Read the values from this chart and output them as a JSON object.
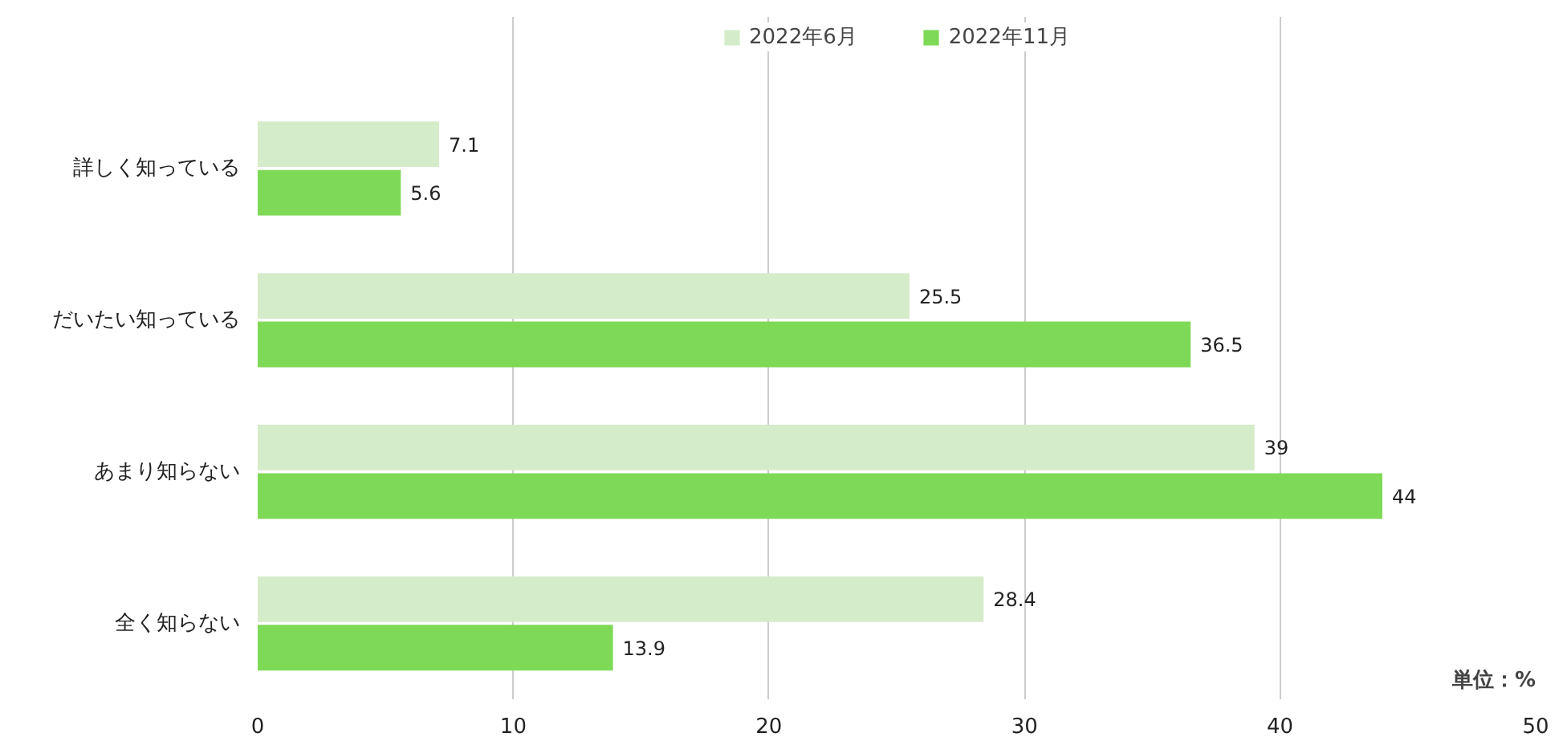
{
  "chart_data": {
    "type": "bar",
    "orientation": "horizontal",
    "categories": [
      "詳しく知っている",
      "だいたい知っている",
      "あまり知らない",
      "全く知らない"
    ],
    "series": [
      {
        "name": "2022年6月",
        "color": "#d5ecca",
        "values": [
          7.1,
          25.5,
          39,
          28.4
        ]
      },
      {
        "name": "2022年11月",
        "color": "#7ed957",
        "values": [
          5.6,
          36.5,
          44,
          13.9
        ]
      }
    ],
    "xlim": [
      0,
      50
    ],
    "xticks": [
      0,
      10,
      20,
      30,
      40,
      50
    ],
    "grid": "x",
    "legend": "top",
    "data_labels": true,
    "annotations": [
      "単位：%"
    ]
  }
}
